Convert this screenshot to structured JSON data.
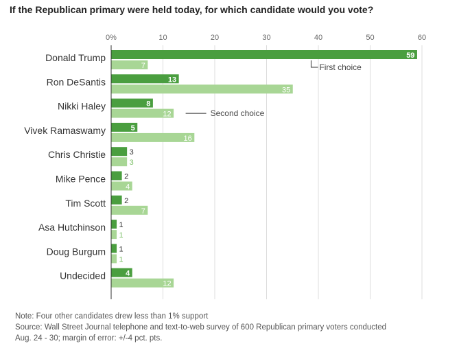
{
  "title": "If the Republican primary were held today, for which candidate would you vote?",
  "chart_data": {
    "type": "bar",
    "orientation": "horizontal",
    "title": "If the Republican primary were held today, for which candidate would you vote?",
    "categories": [
      "Donald Trump",
      "Ron DeSantis",
      "Nikki Haley",
      "Vivek Ramaswamy",
      "Chris Christie",
      "Mike Pence",
      "Tim Scott",
      "Asa Hutchinson",
      "Doug Burgum",
      "Undecided"
    ],
    "series": [
      {
        "name": "First choice",
        "color": "#4a9e3f",
        "values": [
          59,
          13,
          8,
          5,
          3,
          2,
          2,
          1,
          1,
          4
        ]
      },
      {
        "name": "Second choice",
        "color": "#a8d695",
        "values": [
          7,
          35,
          12,
          16,
          3,
          4,
          7,
          1,
          1,
          12
        ]
      }
    ],
    "xlim": [
      0,
      60
    ],
    "xticks": [
      0,
      10,
      20,
      30,
      40,
      50,
      60
    ],
    "xtick_labels": [
      "0%",
      "10",
      "20",
      "30",
      "40",
      "50",
      "60"
    ],
    "grid": true,
    "annotations": [
      {
        "text": "First choice",
        "series": 0,
        "category": "Donald Trump"
      },
      {
        "text": "Second choice",
        "series": 1,
        "category": "Nikki Haley"
      }
    ]
  },
  "notes": {
    "note": "Note: Four other candidates drew less than 1% support",
    "source_line1": "Source: Wall Street Journal telephone and text-to-web survey of 600 Republican primary voters conducted",
    "source_line2": "Aug. 24 - 30; margin of error: +/-4 pct. pts."
  }
}
